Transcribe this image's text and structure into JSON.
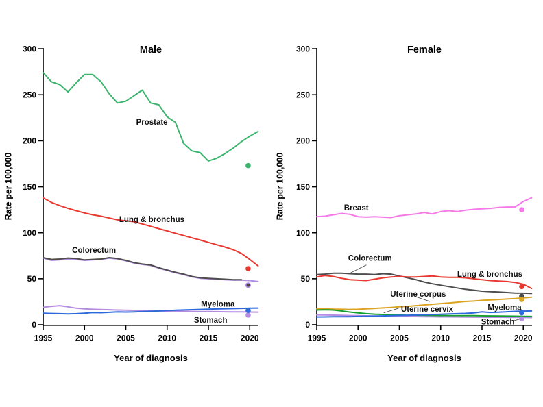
{
  "figure": {
    "background": "#ffffff",
    "xlabel": "Year of diagnosis",
    "ylabel": "Rate per 100,000"
  },
  "chart_data": [
    {
      "type": "line",
      "title": "Male",
      "xlabel": "Year of diagnosis",
      "ylabel": "Rate per 100,000",
      "x_start": 1995,
      "xlim": [
        1995,
        2021.5
      ],
      "ylim": [
        0,
        300
      ],
      "xticks": [
        1995,
        2000,
        2005,
        2010,
        2015,
        2020
      ],
      "yticks": [
        0,
        50,
        100,
        150,
        200,
        250,
        300
      ],
      "grid": false,
      "dot_year": 2020,
      "series": [
        {
          "name": "Prostate",
          "color": "#3cb46e",
          "values": [
            274,
            264,
            261,
            253,
            263,
            272,
            272,
            264,
            251,
            241,
            243,
            249,
            255,
            241,
            239,
            226,
            220,
            197,
            189,
            187,
            178,
            181,
            186,
            192,
            199,
            205,
            210
          ],
          "dot_2020": 173,
          "label": {
            "text": "Prostate",
            "x": 2006.25,
            "y": 220.5
          }
        },
        {
          "name": "Lung & bronchus",
          "color": "#e9382f",
          "values": [
            138,
            133,
            129.5,
            126.5,
            124,
            121.5,
            119.5,
            118,
            116,
            114,
            113,
            112,
            109.5,
            107,
            104.5,
            102,
            99.5,
            97,
            94.5,
            92,
            89.5,
            87,
            84.5,
            81.5,
            77.5,
            71,
            64
          ],
          "dot_2020": 61,
          "label": {
            "text": "Lung & bronchus",
            "x": 2004.2,
            "y": 114.7
          }
        },
        {
          "name": "unlabeled-lavender",
          "color": "#b48ce1",
          "values": [
            72.5,
            70,
            70.5,
            71.5,
            71,
            70,
            70.5,
            71,
            72.5,
            71.5,
            69.5,
            67,
            65.5,
            64.5,
            61.5,
            59,
            56.5,
            54.5,
            52,
            50.5,
            50,
            49.5,
            49,
            48.5,
            48.5,
            48,
            47
          ],
          "dot_2020": 43,
          "dot_r": 4
        },
        {
          "name": "Colorectum",
          "color": "#4d4d4d",
          "values": [
            73,
            71,
            71.5,
            72.5,
            72,
            70.5,
            71,
            71.5,
            73,
            72,
            70,
            67.5,
            66,
            65,
            62,
            59.5,
            57,
            55,
            52.5,
            51,
            50.5,
            50,
            49.5,
            49,
            49
          ],
          "dot_2020": 43,
          "dot_r": 2.4,
          "dot_color": "#4a4049",
          "label": {
            "text": "Colorectum",
            "x": 1998.5,
            "y": 81.2
          }
        },
        {
          "name": "Stomach",
          "color": "#b48ce1",
          "values": [
            19,
            20,
            20.8,
            19.5,
            18,
            17.3,
            16.8,
            16.5,
            16.3,
            16,
            15.8,
            15.6,
            15.4,
            15.2,
            15,
            14.8,
            14.7,
            14.6,
            14.5,
            14.4,
            14.3,
            14.2,
            14.1,
            14,
            13.9,
            13.8,
            13.7
          ],
          "dot_2020": 10.5,
          "label": {
            "text": "Stomach",
            "x": 2013.25,
            "y": 5.2
          }
        },
        {
          "name": "Myeloma",
          "color": "#2d69dc",
          "values": [
            12.5,
            12.2,
            12,
            11.8,
            12,
            12.5,
            13.2,
            13,
            13.5,
            14,
            13.8,
            14,
            14.3,
            14.6,
            15,
            15.4,
            15.8,
            16.1,
            16.4,
            16.7,
            17,
            17.2,
            17.4,
            17.6,
            17.8,
            18,
            18.2
          ],
          "dot_2020": 15.5,
          "label": {
            "text": "Myeloma",
            "x": 2014.1,
            "y": 22.7
          }
        }
      ]
    },
    {
      "type": "line",
      "title": "Female",
      "xlabel": "Year of diagnosis",
      "ylabel": "Rate per 100,000",
      "x_start": 1995,
      "xlim": [
        1995,
        2021.5
      ],
      "ylim": [
        0,
        300
      ],
      "xticks": [
        1995,
        2000,
        2005,
        2010,
        2015,
        2020
      ],
      "yticks": [
        0,
        50,
        100,
        150,
        200,
        250,
        300
      ],
      "grid": false,
      "dot_year": 2020,
      "series": [
        {
          "name": "Breast",
          "color": "#f47ae8",
          "values": [
            117.5,
            118,
            119.5,
            121,
            120,
            117.5,
            117,
            117.5,
            117,
            116.5,
            118.5,
            119.5,
            120.5,
            122,
            120.5,
            123,
            124,
            123,
            124.5,
            125.5,
            126,
            126.5,
            127.5,
            128,
            128,
            134,
            138
          ],
          "dot_2020": 125,
          "label": {
            "text": "Breast",
            "x": 1998.3,
            "y": 127.3
          }
        },
        {
          "name": "Colorectum",
          "color": "#4d4d4d",
          "values": [
            54.5,
            55,
            56,
            56,
            55.5,
            55,
            55,
            54.5,
            55.5,
            55,
            53,
            51,
            49,
            46.5,
            44.5,
            43,
            41.5,
            40,
            38.5,
            37.5,
            36.5,
            36,
            35.5,
            35,
            34.5,
            34.3,
            34
          ],
          "dot_2020": 31,
          "label": {
            "text": "Colorectum",
            "x": 1998.8,
            "y": 72.5
          },
          "leader": [
            1999.1,
            56.4,
            2001.0,
            65.0
          ]
        },
        {
          "name": "Lung & bronchus",
          "color": "#e9382f",
          "values": [
            52,
            53.5,
            52.5,
            50.5,
            49,
            48.5,
            48,
            49.5,
            51,
            52,
            52.5,
            52,
            52,
            52.5,
            53,
            52,
            51.5,
            51.5,
            51,
            50,
            49,
            48,
            47.5,
            47,
            46,
            44,
            39.5
          ],
          "dot_2020": 41.5,
          "label": {
            "text": "Lung & bronchus",
            "x": 2012.0,
            "y": 55.1
          }
        },
        {
          "name": "Uterine corpus",
          "color": "#dba420",
          "values": [
            17.5,
            17.3,
            17,
            16.8,
            16.7,
            16.8,
            17.3,
            17.8,
            18.3,
            18.8,
            19.5,
            20,
            20.8,
            21.5,
            22.3,
            23,
            23.7,
            24.5,
            25.3,
            25.8,
            26.5,
            27,
            27.5,
            28,
            28.5,
            29.3,
            30
          ],
          "dot_2020": 27.5,
          "label": {
            "text": "Uterine corpus",
            "x": 2003.9,
            "y": 33.5
          },
          "leader": [
            2007.0,
            30.5,
            2008.7,
            25.3
          ]
        },
        {
          "name": "Uterine cervix",
          "color": "#14a02d",
          "values": [
            16,
            16.3,
            16,
            15,
            13.8,
            12.8,
            12,
            11.5,
            11.2,
            10.8,
            10.5,
            10.3,
            10.2,
            10.1,
            10,
            10,
            9.9,
            9.9,
            9.8,
            9.8,
            9.7,
            9.6,
            9.5,
            9.4,
            9.3,
            9.1,
            9
          ],
          "label": {
            "text": "Uterine cervix",
            "x": 2005.2,
            "y": 17.3
          },
          "leader": [
            2003.1,
            12.9,
            2004.9,
            17.9
          ]
        },
        {
          "name": "Stomach",
          "color": "#b48ce1",
          "values": [
            10.7,
            10.6,
            10.4,
            10.2,
            10,
            9.8,
            9.7,
            9.5,
            9.4,
            9.2,
            9.1,
            9,
            8.9,
            8.8,
            8.7,
            8.6,
            8.6,
            8.5,
            8.4,
            8.3,
            8.3,
            8.2,
            8.2,
            8.1,
            8.1,
            8,
            7.8
          ],
          "dot_2020": 6.5,
          "label": {
            "text": "Stomach",
            "x": 2014.9,
            "y": 3.5
          },
          "leader": [
            2018.9,
            4.5,
            2019.6,
            6.3
          ]
        },
        {
          "name": "Myeloma",
          "color": "#2d69dc",
          "values": [
            8.5,
            8.6,
            8.7,
            8.8,
            8.8,
            9,
            9.2,
            9.4,
            9.6,
            9.8,
            10.1,
            10.3,
            10.6,
            10.8,
            11.1,
            11.4,
            11.7,
            12,
            12.3,
            12.8,
            14,
            13.3,
            13.6,
            14.1,
            14.5,
            14.8,
            15
          ],
          "dot_2020": 13,
          "label": {
            "text": "Myeloma",
            "x": 2015.7,
            "y": 19.1
          }
        }
      ]
    }
  ]
}
